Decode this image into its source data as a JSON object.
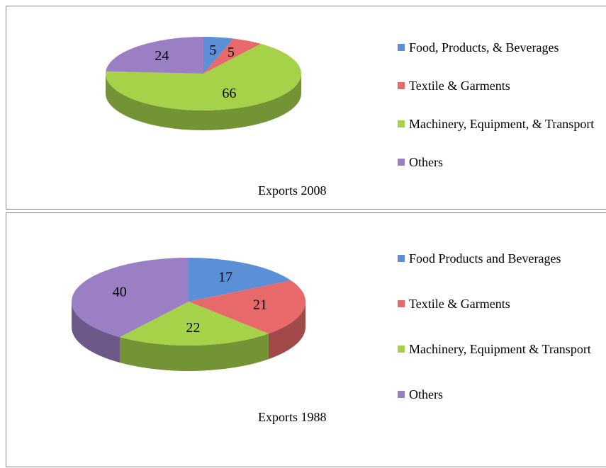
{
  "chart_data": [
    {
      "type": "pie",
      "title": "Exports 2008",
      "categories": [
        "Food, Products, & Beverages",
        "Textile & Garments",
        "Machinery, Equipment, & Transport",
        "Others"
      ],
      "values": [
        5,
        5,
        66,
        24
      ],
      "colors": [
        "#5b8fd6",
        "#e8696a",
        "#a6d24a",
        "#9a7fc4"
      ]
    },
    {
      "type": "pie",
      "title": "Exports 1988",
      "categories": [
        "Food Products and Beverages",
        "Textile & Garments",
        "Machinery, Equipment & Transport",
        "Others"
      ],
      "values": [
        17,
        21,
        22,
        40
      ],
      "colors": [
        "#5b8fd6",
        "#e8696a",
        "#a6d24a",
        "#9a7fc4"
      ]
    }
  ]
}
